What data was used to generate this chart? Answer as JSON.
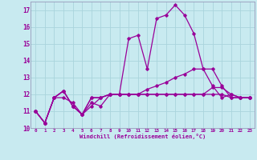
{
  "xlabel": "Windchill (Refroidissement éolien,°C)",
  "background_color": "#c8eaf0",
  "grid_color": "#aad4dc",
  "line_color": "#990099",
  "x_values": [
    0,
    1,
    2,
    3,
    4,
    5,
    6,
    7,
    8,
    9,
    10,
    11,
    12,
    13,
    14,
    15,
    16,
    17,
    18,
    19,
    20,
    21,
    22,
    23
  ],
  "lines": [
    [
      11.0,
      10.3,
      11.8,
      11.8,
      11.5,
      10.8,
      11.5,
      11.3,
      12.0,
      12.0,
      15.3,
      15.5,
      13.5,
      16.5,
      16.7,
      17.3,
      16.7,
      15.6,
      13.5,
      12.5,
      11.8,
      12.0,
      11.8,
      11.8
    ],
    [
      11.0,
      10.3,
      11.8,
      12.2,
      11.3,
      10.8,
      11.8,
      11.8,
      12.0,
      12.0,
      12.0,
      12.0,
      12.0,
      12.0,
      12.0,
      12.0,
      12.0,
      12.0,
      12.0,
      12.4,
      12.4,
      12.0,
      11.8,
      11.8
    ],
    [
      11.0,
      10.3,
      11.8,
      12.2,
      11.3,
      10.8,
      11.3,
      11.8,
      12.0,
      12.0,
      12.0,
      12.0,
      12.3,
      12.5,
      12.7,
      13.0,
      13.2,
      13.5,
      13.5,
      13.5,
      12.5,
      11.8,
      11.8,
      11.8
    ],
    [
      11.0,
      10.3,
      11.8,
      12.2,
      11.3,
      10.8,
      11.8,
      11.8,
      12.0,
      12.0,
      12.0,
      12.0,
      12.0,
      12.0,
      12.0,
      12.0,
      12.0,
      12.0,
      12.0,
      12.0,
      12.0,
      11.8,
      11.8,
      11.8
    ]
  ],
  "ylim": [
    10.0,
    17.5
  ],
  "xlim": [
    -0.5,
    23.5
  ],
  "yticks": [
    10,
    11,
    12,
    13,
    14,
    15,
    16,
    17
  ],
  "xticks": [
    0,
    1,
    2,
    3,
    4,
    5,
    6,
    7,
    8,
    9,
    10,
    11,
    12,
    13,
    14,
    15,
    16,
    17,
    18,
    19,
    20,
    21,
    22,
    23
  ],
  "marker": "D",
  "marker_size": 1.8,
  "line_width": 0.9
}
